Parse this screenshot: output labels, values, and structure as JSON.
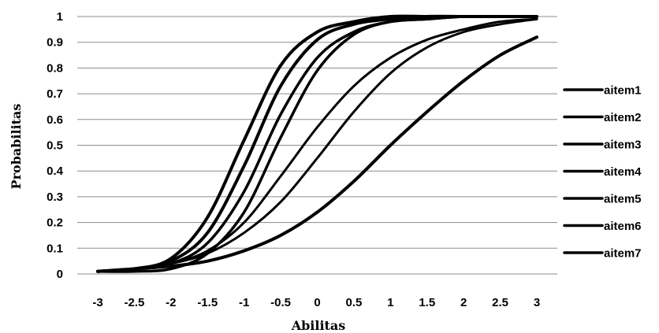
{
  "chart_data": {
    "type": "line",
    "xlabel": "Abilitas",
    "ylabel": "Probabilitas",
    "xlim": [
      -3,
      3
    ],
    "ylim": [
      0,
      1
    ],
    "x_ticks": [
      "-3",
      "-2.5",
      "-2",
      "-1.5",
      "-1",
      "-0.5",
      "0",
      "0.5",
      "1",
      "1.5",
      "2",
      "2.5",
      "3"
    ],
    "y_ticks": [
      "0",
      "0.1",
      "0.2",
      "0.3",
      "0.4",
      "0.5",
      "0.6",
      "0.7",
      "0.8",
      "0.9",
      "1"
    ],
    "grid": "horizontal",
    "legend_position": "right",
    "x": [
      -3,
      -2.5,
      -2,
      -1.5,
      -1,
      -0.5,
      0,
      0.5,
      1,
      1.5,
      2,
      2.5,
      3
    ],
    "series": [
      {
        "name": "aitem1",
        "values": [
          0.01,
          0.02,
          0.04,
          0.08,
          0.16,
          0.28,
          0.45,
          0.63,
          0.78,
          0.88,
          0.94,
          0.97,
          0.99
        ]
      },
      {
        "name": "aitem2",
        "values": [
          0.01,
          0.02,
          0.04,
          0.09,
          0.2,
          0.38,
          0.57,
          0.73,
          0.84,
          0.91,
          0.95,
          0.98,
          0.99
        ]
      },
      {
        "name": "aitem3",
        "values": [
          0.01,
          0.01,
          0.02,
          0.08,
          0.24,
          0.53,
          0.79,
          0.93,
          0.98,
          0.99,
          1.0,
          1.0,
          1.0
        ]
      },
      {
        "name": "aitem4",
        "values": [
          0.01,
          0.02,
          0.06,
          0.22,
          0.52,
          0.81,
          0.94,
          0.98,
          1.0,
          1.0,
          1.0,
          1.0,
          1.0
        ]
      },
      {
        "name": "aitem5",
        "values": [
          0.01,
          0.02,
          0.04,
          0.12,
          0.32,
          0.62,
          0.84,
          0.94,
          0.98,
          0.99,
          1.0,
          1.0,
          1.0
        ]
      },
      {
        "name": "aitem6",
        "values": [
          0.01,
          0.02,
          0.05,
          0.16,
          0.42,
          0.73,
          0.91,
          0.97,
          0.99,
          1.0,
          1.0,
          1.0,
          1.0
        ]
      },
      {
        "name": "aitem7",
        "values": [
          0.01,
          0.02,
          0.03,
          0.05,
          0.09,
          0.15,
          0.24,
          0.36,
          0.5,
          0.63,
          0.75,
          0.85,
          0.92
        ]
      }
    ],
    "stroke_widths": [
      3,
      3,
      3.5,
      4,
      3.5,
      4,
      4
    ],
    "colors": {
      "line": "#000000",
      "grid": "#8c8c8c"
    }
  }
}
